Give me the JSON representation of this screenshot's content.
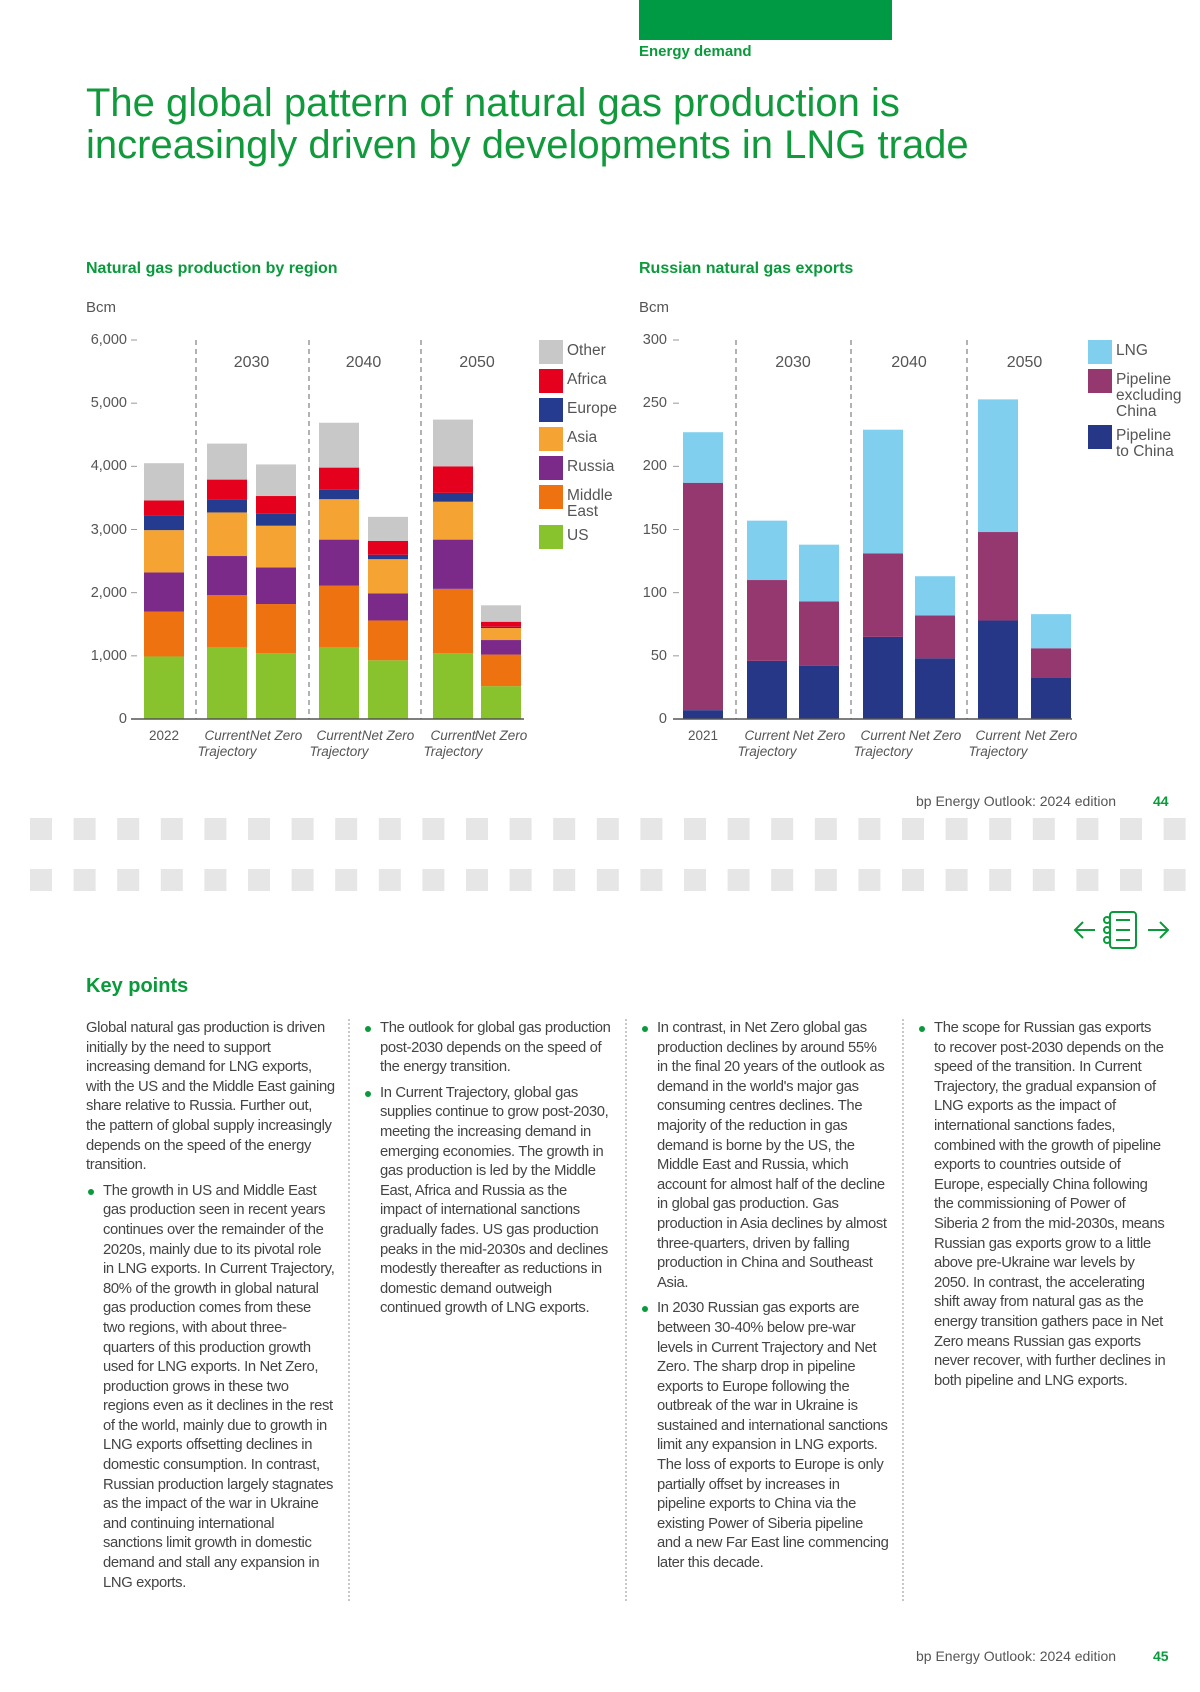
{
  "section": "Energy demand",
  "title": "The global pattern of natural gas production is increasingly driven by developments in LNG trade",
  "chart_data": [
    {
      "type": "bar",
      "stacked": true,
      "title": "Natural gas production by region",
      "y_label": "Bcm",
      "groups": [
        "2030",
        "2040",
        "2050"
      ],
      "categories": [
        "2022",
        "Current Trajectory",
        "Net Zero",
        "Current Trajectory",
        "Net Zero",
        "Current Trajectory",
        "Net Zero"
      ],
      "series": [
        {
          "name": "US",
          "color": "#88c22c",
          "values": [
            990,
            1140,
            1040,
            1140,
            930,
            1040,
            520
          ]
        },
        {
          "name": "Middle East",
          "color": "#ee7210",
          "values": [
            710,
            820,
            780,
            970,
            630,
            1020,
            500
          ]
        },
        {
          "name": "Russia",
          "color": "#7b2a8a",
          "values": [
            620,
            620,
            580,
            730,
            430,
            780,
            230
          ]
        },
        {
          "name": "Asia",
          "color": "#f5a433",
          "values": [
            670,
            690,
            660,
            640,
            540,
            600,
            190
          ]
        },
        {
          "name": "Europe",
          "color": "#253b8f",
          "values": [
            230,
            210,
            190,
            150,
            70,
            140,
            20
          ]
        },
        {
          "name": "Africa",
          "color": "#e5001e",
          "values": [
            240,
            310,
            280,
            350,
            220,
            420,
            80
          ]
        },
        {
          "name": "Other",
          "color": "#c8c8c8",
          "values": [
            590,
            570,
            500,
            710,
            380,
            740,
            260
          ]
        }
      ],
      "ylim": [
        0,
        6000
      ],
      "yticks": [
        0,
        {
          "value": 1000,
          "label": "1,000"
        },
        {
          "value": 2000,
          "label": "2,000"
        },
        {
          "value": 3000,
          "label": "3,000"
        },
        {
          "value": 4000,
          "label": "4,000"
        },
        {
          "value": 5000,
          "label": "5,000"
        },
        {
          "value": 6000,
          "label": "6,000"
        }
      ]
    },
    {
      "type": "bar",
      "stacked": true,
      "title": "Russian natural gas exports",
      "y_label": "Bcm",
      "groups": [
        "2030",
        "2040",
        "2050"
      ],
      "categories": [
        "2021",
        "Current Trajectory",
        "Net Zero",
        "Current Trajectory",
        "Net Zero",
        "Current Trajectory",
        "Net Zero"
      ],
      "series": [
        {
          "name": "Pipeline to China",
          "color": "#263787",
          "values": [
            7,
            46,
            42,
            65,
            48,
            78,
            33
          ]
        },
        {
          "name": "Pipeline excluding China",
          "color": "#953870",
          "values": [
            180,
            64,
            51,
            66,
            34,
            70,
            23
          ]
        },
        {
          "name": "LNG",
          "color": "#80cfef",
          "values": [
            40,
            47,
            45,
            98,
            31,
            105,
            27
          ]
        }
      ],
      "ylim": [
        0,
        300
      ],
      "yticks": [
        0,
        50,
        100,
        150,
        200,
        250,
        300
      ]
    }
  ],
  "footer_top": {
    "text": "bp Energy Outlook: 2024 edition",
    "page": "44"
  },
  "key_points": {
    "heading": "Key points",
    "intro": "Global natural gas production is driven initially by the need to support increasing demand for LNG exports, with the US and the Middle East gaining share relative to Russia. Further out, the pattern of global supply increasingly depends on the speed of the energy transition.",
    "bullets": [
      "The growth in US and Middle East gas production seen in recent years continues over the remainder of the 2020s, mainly due to its pivotal role in LNG exports. In Current Trajectory, 80% of the growth in global natural gas production comes from these two regions, with about three-quarters of this production growth used for LNG exports. In Net Zero, production grows in these two regions even as it declines in the rest of the world, mainly due to growth in LNG exports offsetting declines in domestic consumption. In contrast, Russian production largely stagnates as the impact of the war in Ukraine and continuing international sanctions limit growth in domestic demand and stall any expansion in LNG exports.",
      "The outlook for global gas production post-2030 depends on the speed of the energy transition.",
      "In Current Trajectory, global gas supplies continue to grow post-2030, meeting the increasing demand in emerging economies. The growth in gas production is led by the Middle East, Africa and Russia as the impact of international sanctions gradually fades. US gas production peaks in the mid-2030s and declines modestly thereafter as reductions in domestic demand outweigh continued growth of LNG exports.",
      "In contrast, in Net Zero global gas production declines by around 55% in the final 20 years of the outlook as demand in the world's major gas consuming centres declines. The majority of the reduction in gas demand is borne by the US, the Middle East and Russia, which account for almost half of the decline in global gas production. Gas production in Asia declines by almost three-quarters, driven by falling production in China and Southeast Asia.",
      "In 2030 Russian gas exports are between 30-40% below pre-war levels in Current Trajectory and Net Zero. The sharp drop in pipeline exports to Europe following the outbreak of the war in Ukraine is sustained and international sanctions limit any expansion in LNG exports. The loss of exports to Europe is only partially offset by increases in pipeline exports to China via the existing Power of Siberia pipeline and a new Far East line commencing later this decade.",
      "The scope for Russian gas exports to recover post-2030 depends on the speed of the transition. In Current Trajectory, the gradual expansion of LNG exports as the impact of international sanctions fades, combined with the growth of pipeline exports to countries outside of Europe, especially China following the commissioning of Power of Siberia 2 from the mid-2030s, means Russian gas exports grow to a little above pre-Ukraine war levels by 2050. In contrast, the accelerating shift away from natural gas as the energy transition gathers pace in Net Zero means Russian gas exports never recover, with further declines in both pipeline and LNG exports."
    ]
  },
  "footer_bottom": {
    "text": "bp Energy Outlook: 2024 edition",
    "page": "45"
  }
}
